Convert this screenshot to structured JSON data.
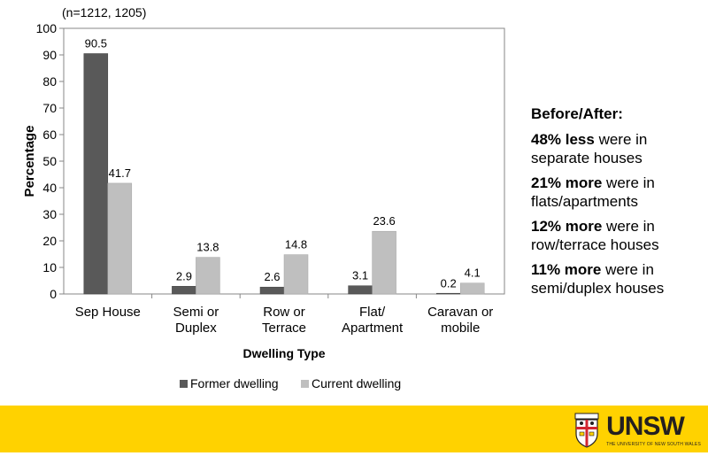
{
  "chart_data": {
    "type": "bar",
    "title": "(n=1212, 1205)",
    "xlabel": "Dwelling Type",
    "ylabel": "Percentage",
    "ylim": [
      0,
      100
    ],
    "yticks": [
      0,
      10,
      20,
      30,
      40,
      50,
      60,
      70,
      80,
      90,
      100
    ],
    "categories": [
      [
        "Sep House"
      ],
      [
        "Semi or",
        "Duplex"
      ],
      [
        "Row or",
        "Terrace"
      ],
      [
        "Flat/",
        "Apartment"
      ],
      [
        "Caravan or",
        "mobile"
      ]
    ],
    "series": [
      {
        "name": "Former dwelling",
        "values": [
          90.5,
          2.9,
          2.6,
          3.1,
          0.2
        ],
        "color": "#595959"
      },
      {
        "name": "Current dwelling",
        "values": [
          41.7,
          13.8,
          14.8,
          23.6,
          4.1
        ],
        "color": "#bfbfbf"
      }
    ],
    "grid": false,
    "legend_position": "bottom"
  },
  "notes": {
    "heading": "Before/After:",
    "items": [
      {
        "bold": "48% less",
        "rest": " were in separate houses"
      },
      {
        "bold": "21% more",
        "rest": " were in flats/apartments"
      },
      {
        "bold": "12% more",
        "rest": " were in row/terrace houses"
      },
      {
        "bold": "11% more",
        "rest": " were in semi/duplex houses"
      }
    ]
  },
  "brand": {
    "logo_text": "UNSW",
    "logo_subtext": "THE UNIVERSITY OF NEW SOUTH WALES",
    "footer_color": "#ffd200"
  }
}
